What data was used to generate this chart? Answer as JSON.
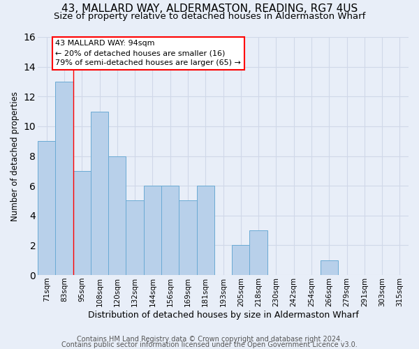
{
  "title": "43, MALLARD WAY, ALDERMASTON, READING, RG7 4US",
  "subtitle": "Size of property relative to detached houses in Aldermaston Wharf",
  "xlabel": "Distribution of detached houses by size in Aldermaston Wharf",
  "ylabel": "Number of detached properties",
  "categories": [
    "71sqm",
    "83sqm",
    "95sqm",
    "108sqm",
    "120sqm",
    "132sqm",
    "144sqm",
    "156sqm",
    "169sqm",
    "181sqm",
    "193sqm",
    "205sqm",
    "218sqm",
    "230sqm",
    "242sqm",
    "254sqm",
    "266sqm",
    "279sqm",
    "291sqm",
    "303sqm",
    "315sqm"
  ],
  "values": [
    9,
    13,
    7,
    11,
    8,
    5,
    6,
    6,
    5,
    6,
    0,
    2,
    3,
    0,
    0,
    0,
    1,
    0,
    0,
    0,
    0
  ],
  "bar_color": "#b8d0ea",
  "bar_edge_color": "#6aaad4",
  "reference_line_x": 2.0,
  "annotation_text": "43 MALLARD WAY: 94sqm\n← 20% of detached houses are smaller (16)\n79% of semi-detached houses are larger (65) →",
  "annotation_box_color": "white",
  "annotation_box_edge_color": "red",
  "ylim_min": 0,
  "ylim_max": 16,
  "yticks": [
    0,
    2,
    4,
    6,
    8,
    10,
    12,
    14,
    16
  ],
  "footer1": "Contains HM Land Registry data © Crown copyright and database right 2024.",
  "footer2": "Contains public sector information licensed under the Open Government Licence v3.0.",
  "background_color": "#e8eef8",
  "grid_color": "#d0d8e8",
  "title_fontsize": 11,
  "subtitle_fontsize": 9.5,
  "ylabel_fontsize": 8.5,
  "xlabel_fontsize": 9,
  "tick_fontsize": 7.5,
  "annotation_fontsize": 8,
  "footer_fontsize": 7
}
